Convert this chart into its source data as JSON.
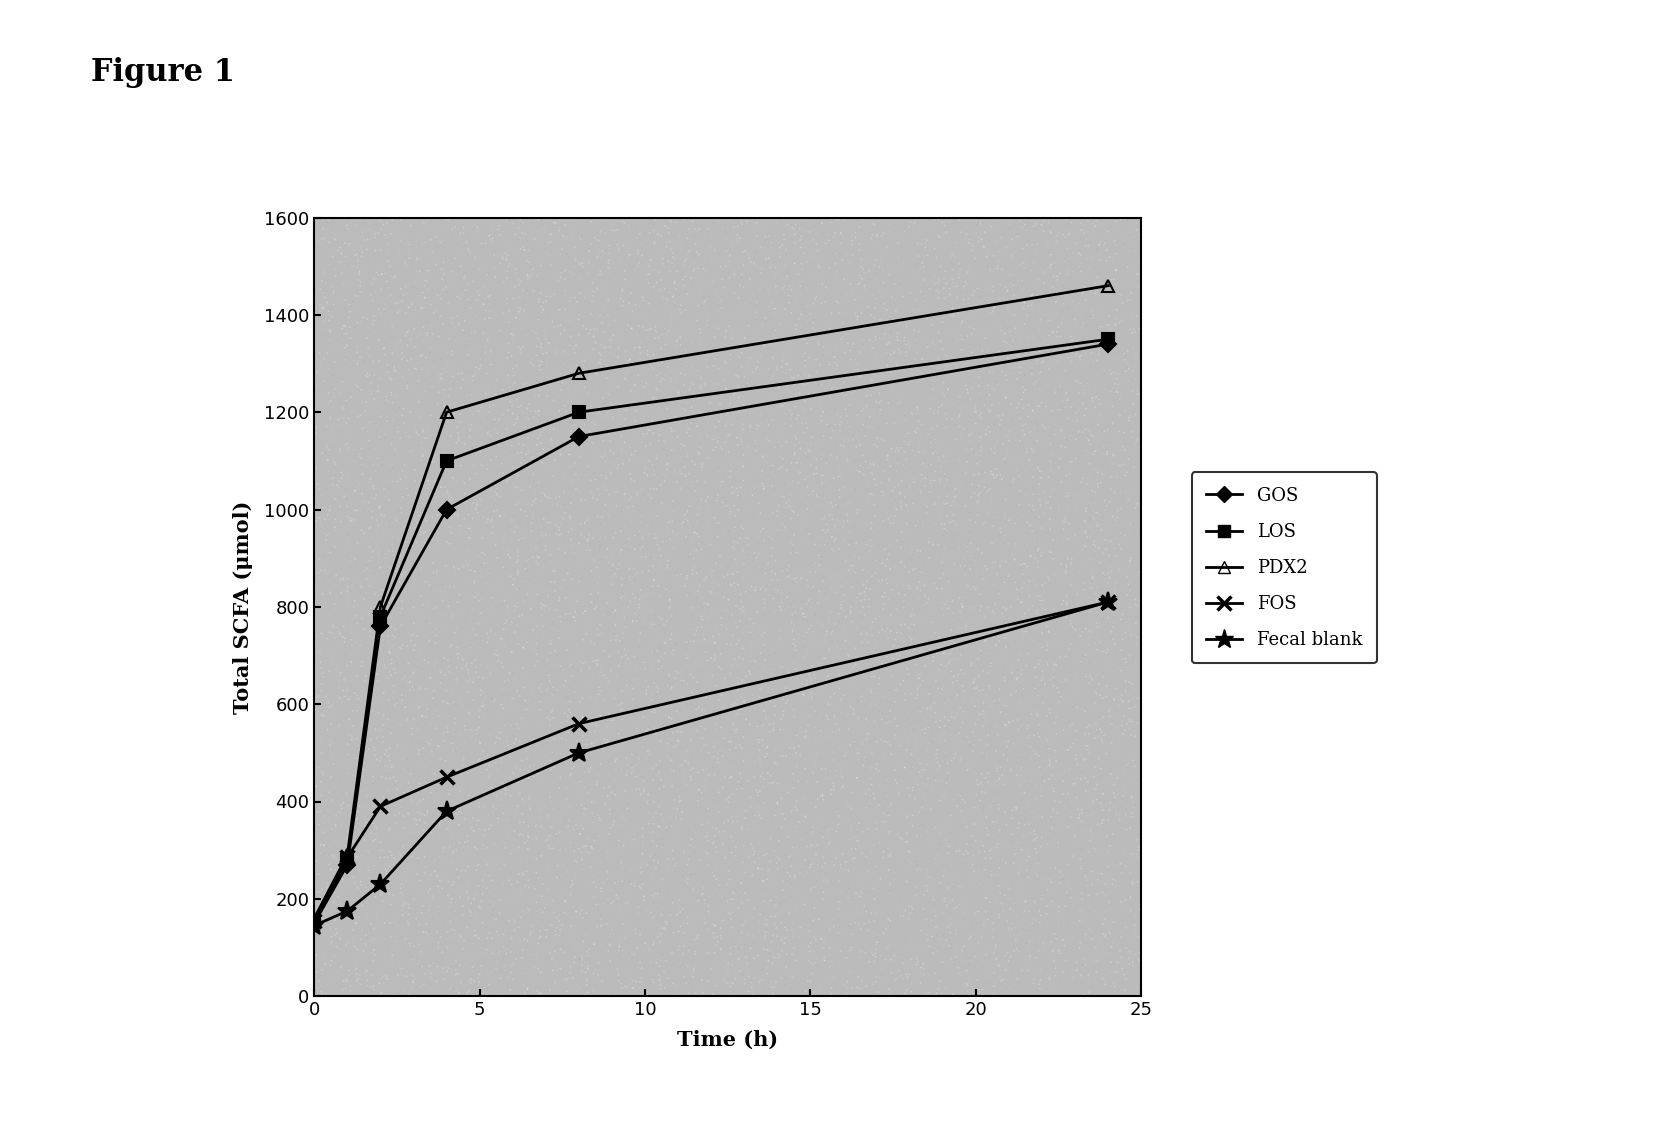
{
  "title": "Figure 1",
  "xlabel": "Time (h)",
  "ylabel": "Total SCFA (μmol)",
  "xlim": [
    0,
    25
  ],
  "ylim": [
    0,
    1600
  ],
  "xticks": [
    0,
    5,
    10,
    15,
    20,
    25
  ],
  "yticks": [
    0,
    200,
    400,
    600,
    800,
    1000,
    1200,
    1400,
    1600
  ],
  "series": {
    "GOS": {
      "x": [
        0,
        1,
        2,
        4,
        8,
        24
      ],
      "y": [
        150,
        270,
        760,
        1000,
        1150,
        1340
      ],
      "color": "#000000",
      "linewidth": 2
    },
    "LOS": {
      "x": [
        0,
        1,
        2,
        4,
        8,
        24
      ],
      "y": [
        155,
        280,
        780,
        1100,
        1200,
        1350
      ],
      "color": "#000000",
      "linewidth": 2
    },
    "PDX2": {
      "x": [
        0,
        1,
        2,
        4,
        8,
        24
      ],
      "y": [
        160,
        290,
        800,
        1200,
        1280,
        1460
      ],
      "color": "#000000",
      "linewidth": 2
    },
    "FOS": {
      "x": [
        0,
        1,
        2,
        4,
        8,
        24
      ],
      "y": [
        155,
        285,
        390,
        450,
        560,
        810
      ],
      "color": "#000000",
      "linewidth": 2
    },
    "Fecal blank": {
      "x": [
        0,
        1,
        2,
        4,
        8,
        24
      ],
      "y": [
        145,
        175,
        230,
        380,
        500,
        810
      ],
      "color": "#000000",
      "linewidth": 2
    }
  },
  "marker_styles": {
    "GOS": {
      "marker": "D",
      "markersize": 8,
      "fillstyle": "full",
      "markeredgewidth": 1.5
    },
    "LOS": {
      "marker": "s",
      "markersize": 9,
      "fillstyle": "full",
      "markeredgewidth": 1.5
    },
    "PDX2": {
      "marker": "^",
      "markersize": 9,
      "fillstyle": "none",
      "markeredgewidth": 1.5
    },
    "FOS": {
      "marker": "x",
      "markersize": 10,
      "fillstyle": "full",
      "markeredgewidth": 2.5
    },
    "Fecal blank": {
      "marker": "*",
      "markersize": 14,
      "fillstyle": "full",
      "markeredgewidth": 1.5
    }
  },
  "background_color": "#bbbbbb",
  "figure_background": "#ffffff"
}
